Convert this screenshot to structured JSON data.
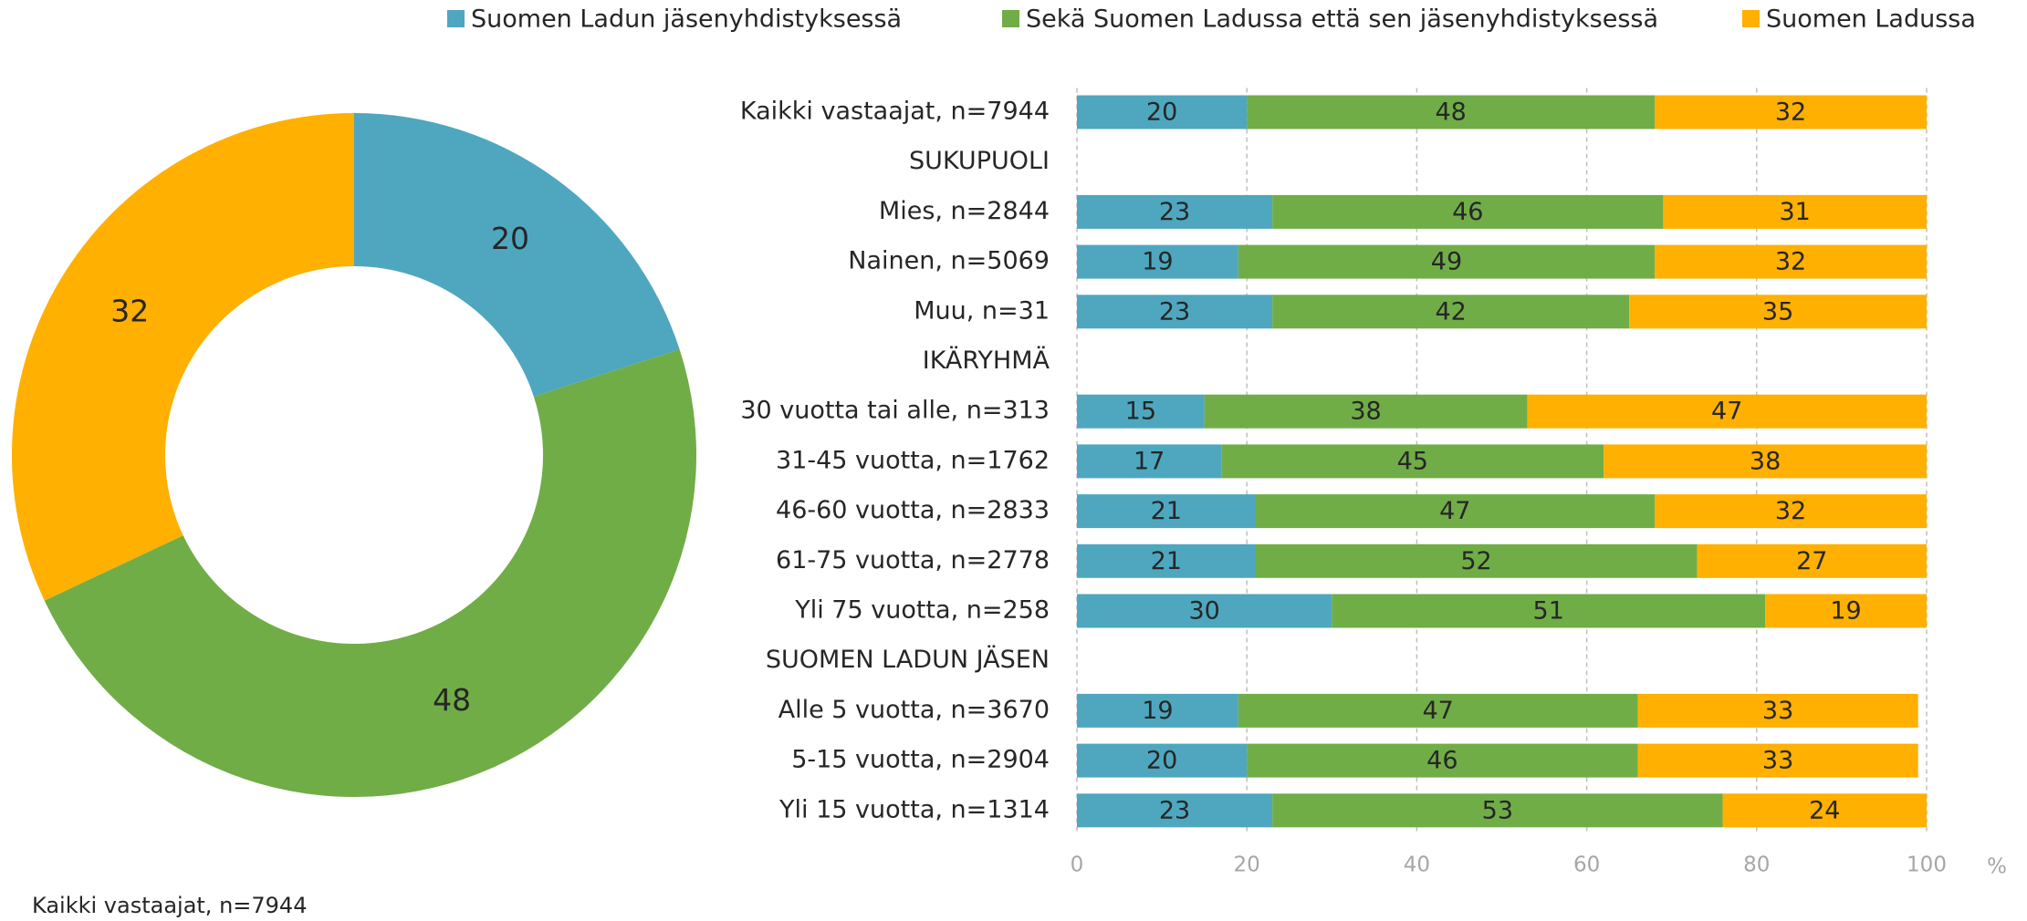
{
  "chart_data": [
    {
      "type": "donut",
      "values": [
        20,
        48,
        32
      ],
      "colors": [
        "#4ea7bf",
        "#70ad47",
        "#ffb000"
      ],
      "caption": "Kaikki vastaajat, n=7944"
    },
    {
      "type": "stacked_barh",
      "legend": "top",
      "grid": true,
      "categories": [
        "Kaikki vastaajat, n=7944",
        "SUKUPUOLI",
        "Mies, n=2844",
        "Nainen, n=5069",
        "Muu, n=31",
        "IKÄRYHMÄ",
        "30 vuotta tai alle, n=313",
        "31-45 vuotta, n=1762",
        "46-60 vuotta, n=2833",
        "61-75 vuotta, n=2778",
        "Yli 75 vuotta, n=258",
        "SUOMEN LADUN JÄSEN",
        "Alle 5 vuotta, n=3670",
        "5-15 vuotta, n=2904",
        "Yli 15 vuotta, n=1314"
      ],
      "series": [
        {
          "name": "Suomen Ladun jäsenyhdistyksessä",
          "color": "#4ea7bf",
          "values": [
            20,
            null,
            23,
            19,
            23,
            null,
            15,
            17,
            21,
            21,
            30,
            null,
            19,
            20,
            23
          ]
        },
        {
          "name": "Sekä Suomen Ladussa että sen jäsenyhdistyksessä",
          "color": "#70ad47",
          "values": [
            48,
            null,
            46,
            49,
            42,
            null,
            38,
            45,
            47,
            52,
            51,
            null,
            47,
            46,
            53
          ]
        },
        {
          "name": "Suomen Ladussa",
          "color": "#ffb000",
          "values": [
            32,
            null,
            31,
            32,
            35,
            null,
            47,
            38,
            32,
            27,
            19,
            null,
            33,
            33,
            24
          ]
        }
      ],
      "xlim": [
        0,
        100
      ],
      "xticks": [
        0,
        20,
        40,
        60,
        80,
        100
      ],
      "xlabel": "%"
    }
  ]
}
